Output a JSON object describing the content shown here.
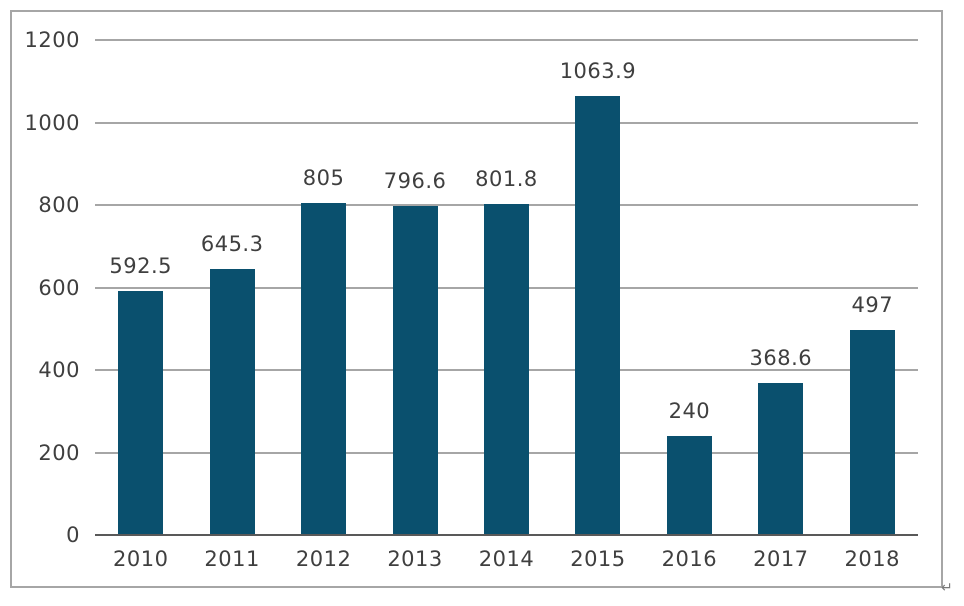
{
  "chart_data": {
    "type": "bar",
    "title": "",
    "xlabel": "",
    "ylabel": "",
    "categories": [
      "2010",
      "2011",
      "2012",
      "2013",
      "2014",
      "2015",
      "2016",
      "2017",
      "2018"
    ],
    "values": [
      592.5,
      645.3,
      805,
      796.6,
      801.8,
      1063.9,
      240,
      368.6,
      497
    ],
    "value_labels": [
      "592.5",
      "645.3",
      "805",
      "796.6",
      "801.8",
      "1063.9",
      "240",
      "368.6",
      "497"
    ],
    "ylim": [
      0,
      1200
    ],
    "yticks": [
      0,
      200,
      400,
      600,
      800,
      1000,
      1200
    ],
    "grid": true,
    "legend": "none",
    "colors": {
      "bar": "#0a506e",
      "gridline": "#a6a6a6",
      "axis_line": "#595959",
      "frame_border": "#a6a6a6",
      "text": "#3f3f3f",
      "background": "#ffffff"
    }
  },
  "decorations": {
    "return_mark": "↵"
  }
}
